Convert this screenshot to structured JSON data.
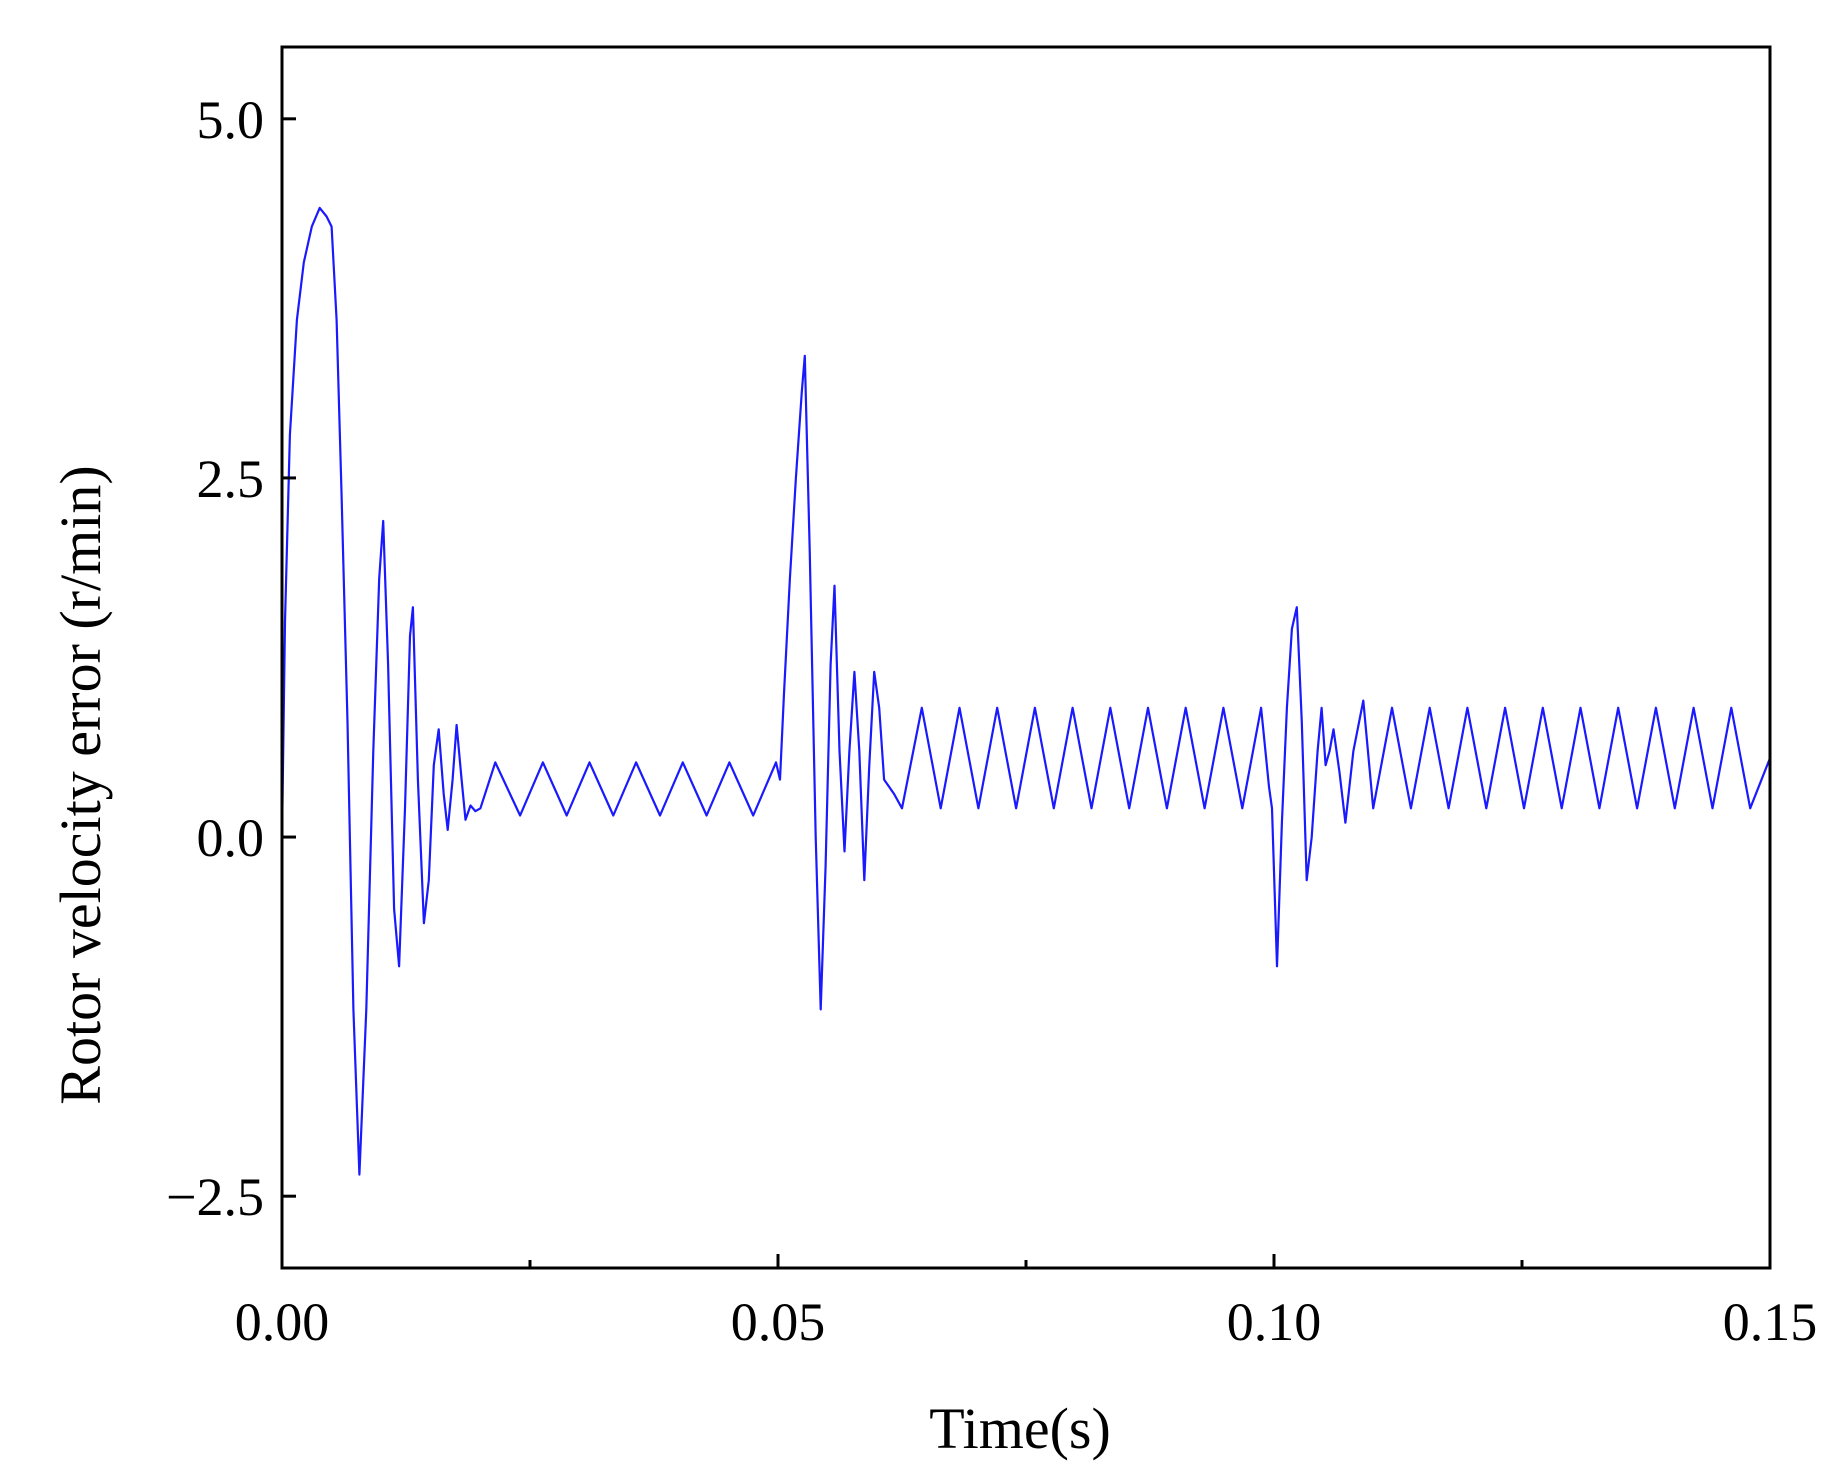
{
  "chart_data": {
    "type": "line",
    "xlabel": "Time(s)",
    "ylabel": "Rotor velocity error (r/min)",
    "xlim": [
      0,
      0.15
    ],
    "ylim": [
      -3.0,
      5.5
    ],
    "xticks": [
      0.0,
      0.05,
      0.1,
      0.15
    ],
    "xtick_labels": [
      "0.00",
      "0.05",
      "0.10",
      "0.15"
    ],
    "xminor": [
      0.025,
      0.075,
      0.125
    ],
    "yticks": [
      -2.5,
      0.0,
      2.5,
      5.0
    ],
    "ytick_labels": [
      "−2.5",
      "0.0",
      "2.5",
      "5.0"
    ],
    "grid": false,
    "legend": "none",
    "series": [
      {
        "color": "#1a1aff",
        "points": [
          [
            0.0,
            0.0
          ],
          [
            0.0003,
            1.5
          ],
          [
            0.0008,
            2.8
          ],
          [
            0.0015,
            3.6
          ],
          [
            0.0022,
            4.0
          ],
          [
            0.003,
            4.25
          ],
          [
            0.0038,
            4.38
          ],
          [
            0.0045,
            4.32
          ],
          [
            0.005,
            4.25
          ],
          [
            0.0055,
            3.6
          ],
          [
            0.006,
            2.4
          ],
          [
            0.0066,
            0.8
          ],
          [
            0.0072,
            -1.2
          ],
          [
            0.0078,
            -2.35
          ],
          [
            0.0085,
            -1.2
          ],
          [
            0.0092,
            0.6
          ],
          [
            0.0098,
            1.8
          ],
          [
            0.0102,
            2.2
          ],
          [
            0.0107,
            1.2
          ],
          [
            0.0113,
            -0.5
          ],
          [
            0.0118,
            -0.9
          ],
          [
            0.0124,
            0.2
          ],
          [
            0.0129,
            1.4
          ],
          [
            0.0132,
            1.6
          ],
          [
            0.0137,
            0.4
          ],
          [
            0.0143,
            -0.6
          ],
          [
            0.0148,
            -0.3
          ],
          [
            0.0153,
            0.5
          ],
          [
            0.0158,
            0.75
          ],
          [
            0.0163,
            0.3
          ],
          [
            0.0167,
            0.05
          ],
          [
            0.0172,
            0.4
          ],
          [
            0.0176,
            0.78
          ],
          [
            0.0181,
            0.4
          ],
          [
            0.0185,
            0.12
          ],
          [
            0.019,
            0.22
          ],
          [
            0.0195,
            0.18
          ],
          [
            0.02,
            0.2
          ],
          [
            0.0215,
            0.52
          ],
          [
            0.024,
            0.15
          ],
          [
            0.0263,
            0.52
          ],
          [
            0.0287,
            0.15
          ],
          [
            0.031,
            0.52
          ],
          [
            0.0334,
            0.15
          ],
          [
            0.0357,
            0.52
          ],
          [
            0.0381,
            0.15
          ],
          [
            0.0404,
            0.52
          ],
          [
            0.0428,
            0.15
          ],
          [
            0.0451,
            0.52
          ],
          [
            0.0475,
            0.15
          ],
          [
            0.0498,
            0.52
          ],
          [
            0.0502,
            0.4
          ],
          [
            0.0506,
            1.0
          ],
          [
            0.0512,
            1.8
          ],
          [
            0.0518,
            2.5
          ],
          [
            0.0524,
            3.1
          ],
          [
            0.0527,
            3.35
          ],
          [
            0.0532,
            2.0
          ],
          [
            0.0538,
            0.0
          ],
          [
            0.0543,
            -1.2
          ],
          [
            0.0548,
            -0.2
          ],
          [
            0.0553,
            1.2
          ],
          [
            0.0557,
            1.75
          ],
          [
            0.0562,
            0.6
          ],
          [
            0.0567,
            -0.1
          ],
          [
            0.0572,
            0.6
          ],
          [
            0.0577,
            1.15
          ],
          [
            0.0582,
            0.6
          ],
          [
            0.0587,
            -0.3
          ],
          [
            0.0592,
            0.5
          ],
          [
            0.0597,
            1.15
          ],
          [
            0.0602,
            0.9
          ],
          [
            0.0607,
            0.4
          ],
          [
            0.0612,
            0.35
          ],
          [
            0.0617,
            0.3
          ],
          [
            0.0625,
            0.2
          ],
          [
            0.0645,
            0.9
          ],
          [
            0.0664,
            0.2
          ],
          [
            0.0683,
            0.9
          ],
          [
            0.0702,
            0.2
          ],
          [
            0.0721,
            0.9
          ],
          [
            0.074,
            0.2
          ],
          [
            0.0759,
            0.9
          ],
          [
            0.0778,
            0.2
          ],
          [
            0.0797,
            0.9
          ],
          [
            0.0816,
            0.2
          ],
          [
            0.0835,
            0.9
          ],
          [
            0.0854,
            0.2
          ],
          [
            0.0873,
            0.9
          ],
          [
            0.0892,
            0.2
          ],
          [
            0.0911,
            0.9
          ],
          [
            0.093,
            0.2
          ],
          [
            0.0949,
            0.9
          ],
          [
            0.0968,
            0.2
          ],
          [
            0.0987,
            0.9
          ],
          [
            0.0995,
            0.35
          ],
          [
            0.0998,
            0.2
          ],
          [
            0.1003,
            -0.9
          ],
          [
            0.1008,
            0.1
          ],
          [
            0.1013,
            0.9
          ],
          [
            0.1018,
            1.45
          ],
          [
            0.1023,
            1.6
          ],
          [
            0.1028,
            0.8
          ],
          [
            0.1033,
            -0.3
          ],
          [
            0.1038,
            0.0
          ],
          [
            0.1044,
            0.6
          ],
          [
            0.1048,
            0.9
          ],
          [
            0.1052,
            0.5
          ],
          [
            0.1056,
            0.6
          ],
          [
            0.106,
            0.75
          ],
          [
            0.1066,
            0.45
          ],
          [
            0.1072,
            0.1
          ],
          [
            0.108,
            0.6
          ],
          [
            0.109,
            0.95
          ],
          [
            0.11,
            0.2
          ],
          [
            0.1119,
            0.9
          ],
          [
            0.1138,
            0.2
          ],
          [
            0.1157,
            0.9
          ],
          [
            0.1176,
            0.2
          ],
          [
            0.1195,
            0.9
          ],
          [
            0.1214,
            0.2
          ],
          [
            0.1233,
            0.9
          ],
          [
            0.1252,
            0.2
          ],
          [
            0.1271,
            0.9
          ],
          [
            0.129,
            0.2
          ],
          [
            0.1309,
            0.9
          ],
          [
            0.1328,
            0.2
          ],
          [
            0.1347,
            0.9
          ],
          [
            0.1366,
            0.2
          ],
          [
            0.1385,
            0.9
          ],
          [
            0.1404,
            0.2
          ],
          [
            0.1423,
            0.9
          ],
          [
            0.1442,
            0.2
          ],
          [
            0.1461,
            0.9
          ],
          [
            0.148,
            0.2
          ],
          [
            0.15,
            0.55
          ]
        ]
      }
    ]
  }
}
